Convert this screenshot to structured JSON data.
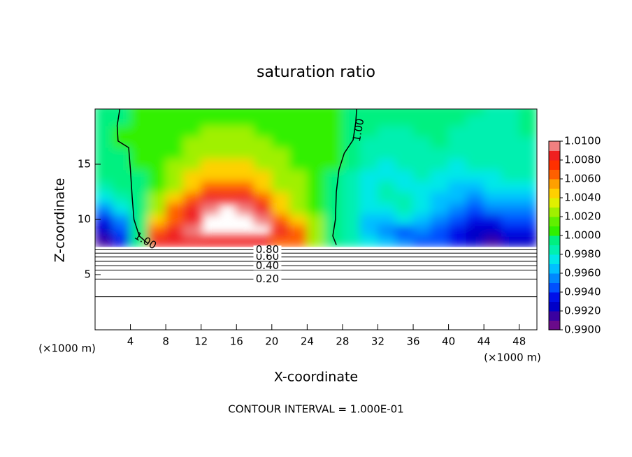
{
  "chart_data": {
    "type": "contour",
    "title": "saturation ratio",
    "xlabel": "X-coordinate",
    "ylabel": "Z-coordinate",
    "x_unit": "(×1000 m)",
    "y_unit": "(×1000 m)",
    "footnote": "CONTOUR INTERVAL = 1.000E-01",
    "xlim": [
      0,
      50
    ],
    "ylim": [
      0,
      20
    ],
    "xticks": [
      4,
      8,
      12,
      16,
      20,
      24,
      28,
      32,
      36,
      40,
      44,
      48
    ],
    "yticks": [
      5,
      10,
      15
    ],
    "colorbar": {
      "lim": [
        0.99,
        1.01
      ],
      "colors": [
        "#6a0a8a",
        "#3a00a0",
        "#0000c8",
        "#0010e8",
        "#0050ff",
        "#0088ff",
        "#00c0ff",
        "#00e8e8",
        "#00f0b0",
        "#00f080",
        "#30f000",
        "#60f000",
        "#a0f000",
        "#e0f000",
        "#ffd000",
        "#ffa000",
        "#ff6000",
        "#ff3000",
        "#f02020",
        "#f08080"
      ],
      "ticks": [
        {
          "value": 0.99,
          "label": "0.9900"
        },
        {
          "value": 0.992,
          "label": "0.9920"
        },
        {
          "value": 0.994,
          "label": "0.9940"
        },
        {
          "value": 0.996,
          "label": "0.9960"
        },
        {
          "value": 0.998,
          "label": "0.9980"
        },
        {
          "value": 1.0,
          "label": "1.0000"
        },
        {
          "value": 1.002,
          "label": "1.0020"
        },
        {
          "value": 1.004,
          "label": "1.0040"
        },
        {
          "value": 1.006,
          "label": "1.0060"
        },
        {
          "value": 1.008,
          "label": "1.0080"
        },
        {
          "value": 1.01,
          "label": "1.0100"
        }
      ]
    },
    "field": {
      "x": [
        1,
        3,
        5,
        7,
        9,
        11,
        13,
        15,
        17,
        19,
        21,
        23,
        25,
        27,
        29,
        31,
        33,
        35,
        37,
        39,
        41,
        43,
        45,
        47,
        49
      ],
      "y": [
        8,
        9,
        10,
        11,
        12,
        13,
        14,
        15,
        16,
        17,
        18,
        19,
        20
      ],
      "values": [
        [
          0.991,
          0.993,
          0.9995,
          1.008,
          1.008,
          1.009,
          1.009,
          1.008,
          1.008,
          1.008,
          1.007,
          1.006,
          1.003,
          0.999,
          0.998,
          0.997,
          0.996,
          0.995,
          0.994,
          0.994,
          0.993,
          0.992,
          0.991,
          0.992,
          0.992
        ],
        [
          0.992,
          0.994,
          0.999,
          1.006,
          1.008,
          1.01,
          null,
          null,
          null,
          null,
          1.009,
          1.006,
          1.002,
          0.999,
          0.998,
          0.996,
          0.995,
          0.994,
          0.995,
          0.994,
          0.993,
          0.992,
          0.992,
          0.993,
          0.993
        ],
        [
          0.993,
          0.995,
          0.999,
          1.004,
          1.007,
          1.009,
          null,
          null,
          null,
          1.01,
          1.007,
          1.004,
          1.002,
          0.999,
          0.998,
          0.996,
          0.996,
          0.997,
          0.996,
          0.995,
          0.994,
          0.993,
          0.993,
          0.994,
          0.994
        ],
        [
          0.995,
          0.997,
          0.999,
          1.003,
          1.006,
          1.008,
          1.01,
          null,
          1.01,
          1.008,
          1.005,
          1.003,
          1.001,
          0.999,
          0.998,
          0.997,
          0.997,
          0.998,
          0.997,
          0.996,
          0.995,
          0.994,
          0.995,
          0.995,
          0.995
        ],
        [
          0.997,
          0.998,
          0.999,
          1.002,
          1.004,
          1.007,
          1.009,
          1.009,
          1.008,
          1.006,
          1.004,
          1.002,
          1.001,
          0.9995,
          0.998,
          0.997,
          0.998,
          0.998,
          0.997,
          0.996,
          0.996,
          0.995,
          0.996,
          0.996,
          0.996
        ],
        [
          0.998,
          0.999,
          0.9995,
          1.001,
          1.003,
          1.005,
          1.007,
          1.007,
          1.006,
          1.005,
          1.003,
          1.002,
          1.001,
          0.9995,
          0.998,
          0.997,
          0.998,
          0.997,
          0.997,
          0.997,
          0.996,
          0.996,
          0.997,
          0.997,
          0.997
        ],
        [
          0.999,
          0.999,
          0.9995,
          1.001,
          1.002,
          1.004,
          1.005,
          1.005,
          1.005,
          1.004,
          1.003,
          1.002,
          1.001,
          0.9995,
          0.998,
          0.997,
          0.997,
          0.997,
          0.998,
          0.997,
          0.997,
          0.997,
          0.997,
          0.998,
          0.998
        ],
        [
          0.999,
          0.9995,
          1.0,
          1.001,
          1.002,
          1.003,
          1.004,
          1.004,
          1.004,
          1.003,
          1.002,
          1.001,
          1.001,
          1.0,
          0.999,
          0.998,
          0.997,
          0.998,
          0.998,
          0.998,
          0.997,
          0.998,
          0.998,
          0.998,
          0.998
        ],
        [
          0.9995,
          0.9995,
          1.0,
          1.001,
          1.001,
          1.002,
          1.003,
          1.003,
          1.003,
          1.002,
          1.002,
          1.001,
          1.0005,
          1.0,
          0.9995,
          0.998,
          0.998,
          0.998,
          0.998,
          0.998,
          0.998,
          0.998,
          0.998,
          0.998,
          0.998
        ],
        [
          0.9995,
          1.0,
          1.0,
          1.0005,
          1.001,
          1.002,
          1.002,
          1.002,
          1.002,
          1.002,
          1.001,
          1.001,
          1.0005,
          1.0,
          0.9995,
          0.998,
          0.998,
          0.998,
          0.998,
          0.999,
          0.998,
          0.998,
          0.998,
          0.998,
          0.998
        ],
        [
          0.9995,
          1.0,
          1.0,
          1.0005,
          1.001,
          1.001,
          1.002,
          1.002,
          1.002,
          1.001,
          1.001,
          1.0005,
          1.0,
          1.0,
          0.9995,
          0.999,
          0.998,
          0.998,
          0.999,
          0.999,
          0.998,
          0.998,
          0.998,
          0.998,
          0.999
        ],
        [
          0.9995,
          0.9995,
          1.0,
          1.0005,
          1.0005,
          1.001,
          1.001,
          1.001,
          1.001,
          1.001,
          1.0005,
          1.0005,
          1.0,
          1.0,
          0.9995,
          0.999,
          0.999,
          0.999,
          0.999,
          0.999,
          0.999,
          0.998,
          0.998,
          0.998,
          0.999
        ],
        [
          0.9995,
          0.9995,
          1.0,
          1.0005,
          1.0005,
          1.0005,
          1.001,
          1.001,
          1.001,
          1.0005,
          1.0005,
          1.0005,
          1.0,
          1.0,
          0.9995,
          0.999,
          0.999,
          0.999,
          0.999,
          0.999,
          0.999,
          0.999,
          0.998,
          0.998,
          0.999
        ]
      ]
    },
    "level_lines": [
      {
        "level": 0.1,
        "z": 3.0
      },
      {
        "level": 0.2,
        "z": 4.6,
        "label": "0.20"
      },
      {
        "level": 0.3,
        "z": 5.4
      },
      {
        "level": 0.4,
        "z": 5.8,
        "label": "0.40"
      },
      {
        "level": 0.5,
        "z": 6.2
      },
      {
        "level": 0.6,
        "z": 6.6,
        "label": "0.60"
      },
      {
        "level": 0.7,
        "z": 6.95
      },
      {
        "level": 0.8,
        "z": 7.25,
        "label": "0.80"
      }
    ],
    "curves": [
      {
        "level": 1.0,
        "label": "1.00",
        "x": [
          2.8,
          2.5,
          2.6,
          3.8,
          4.0,
          4.2,
          4.4,
          5.0,
          6.0
        ],
        "y": [
          20,
          18.5,
          17.1,
          16.5,
          14.5,
          12,
          10,
          8.5,
          7.8
        ]
      },
      {
        "level": 1.0,
        "label": "1.00",
        "x": [
          29.6,
          29.5,
          29.2,
          28.2,
          27.6,
          27.3,
          27.2,
          26.9,
          27.3
        ],
        "y": [
          20,
          18.8,
          17.2,
          16,
          14.5,
          12.5,
          10,
          8.5,
          7.7
        ]
      }
    ]
  }
}
